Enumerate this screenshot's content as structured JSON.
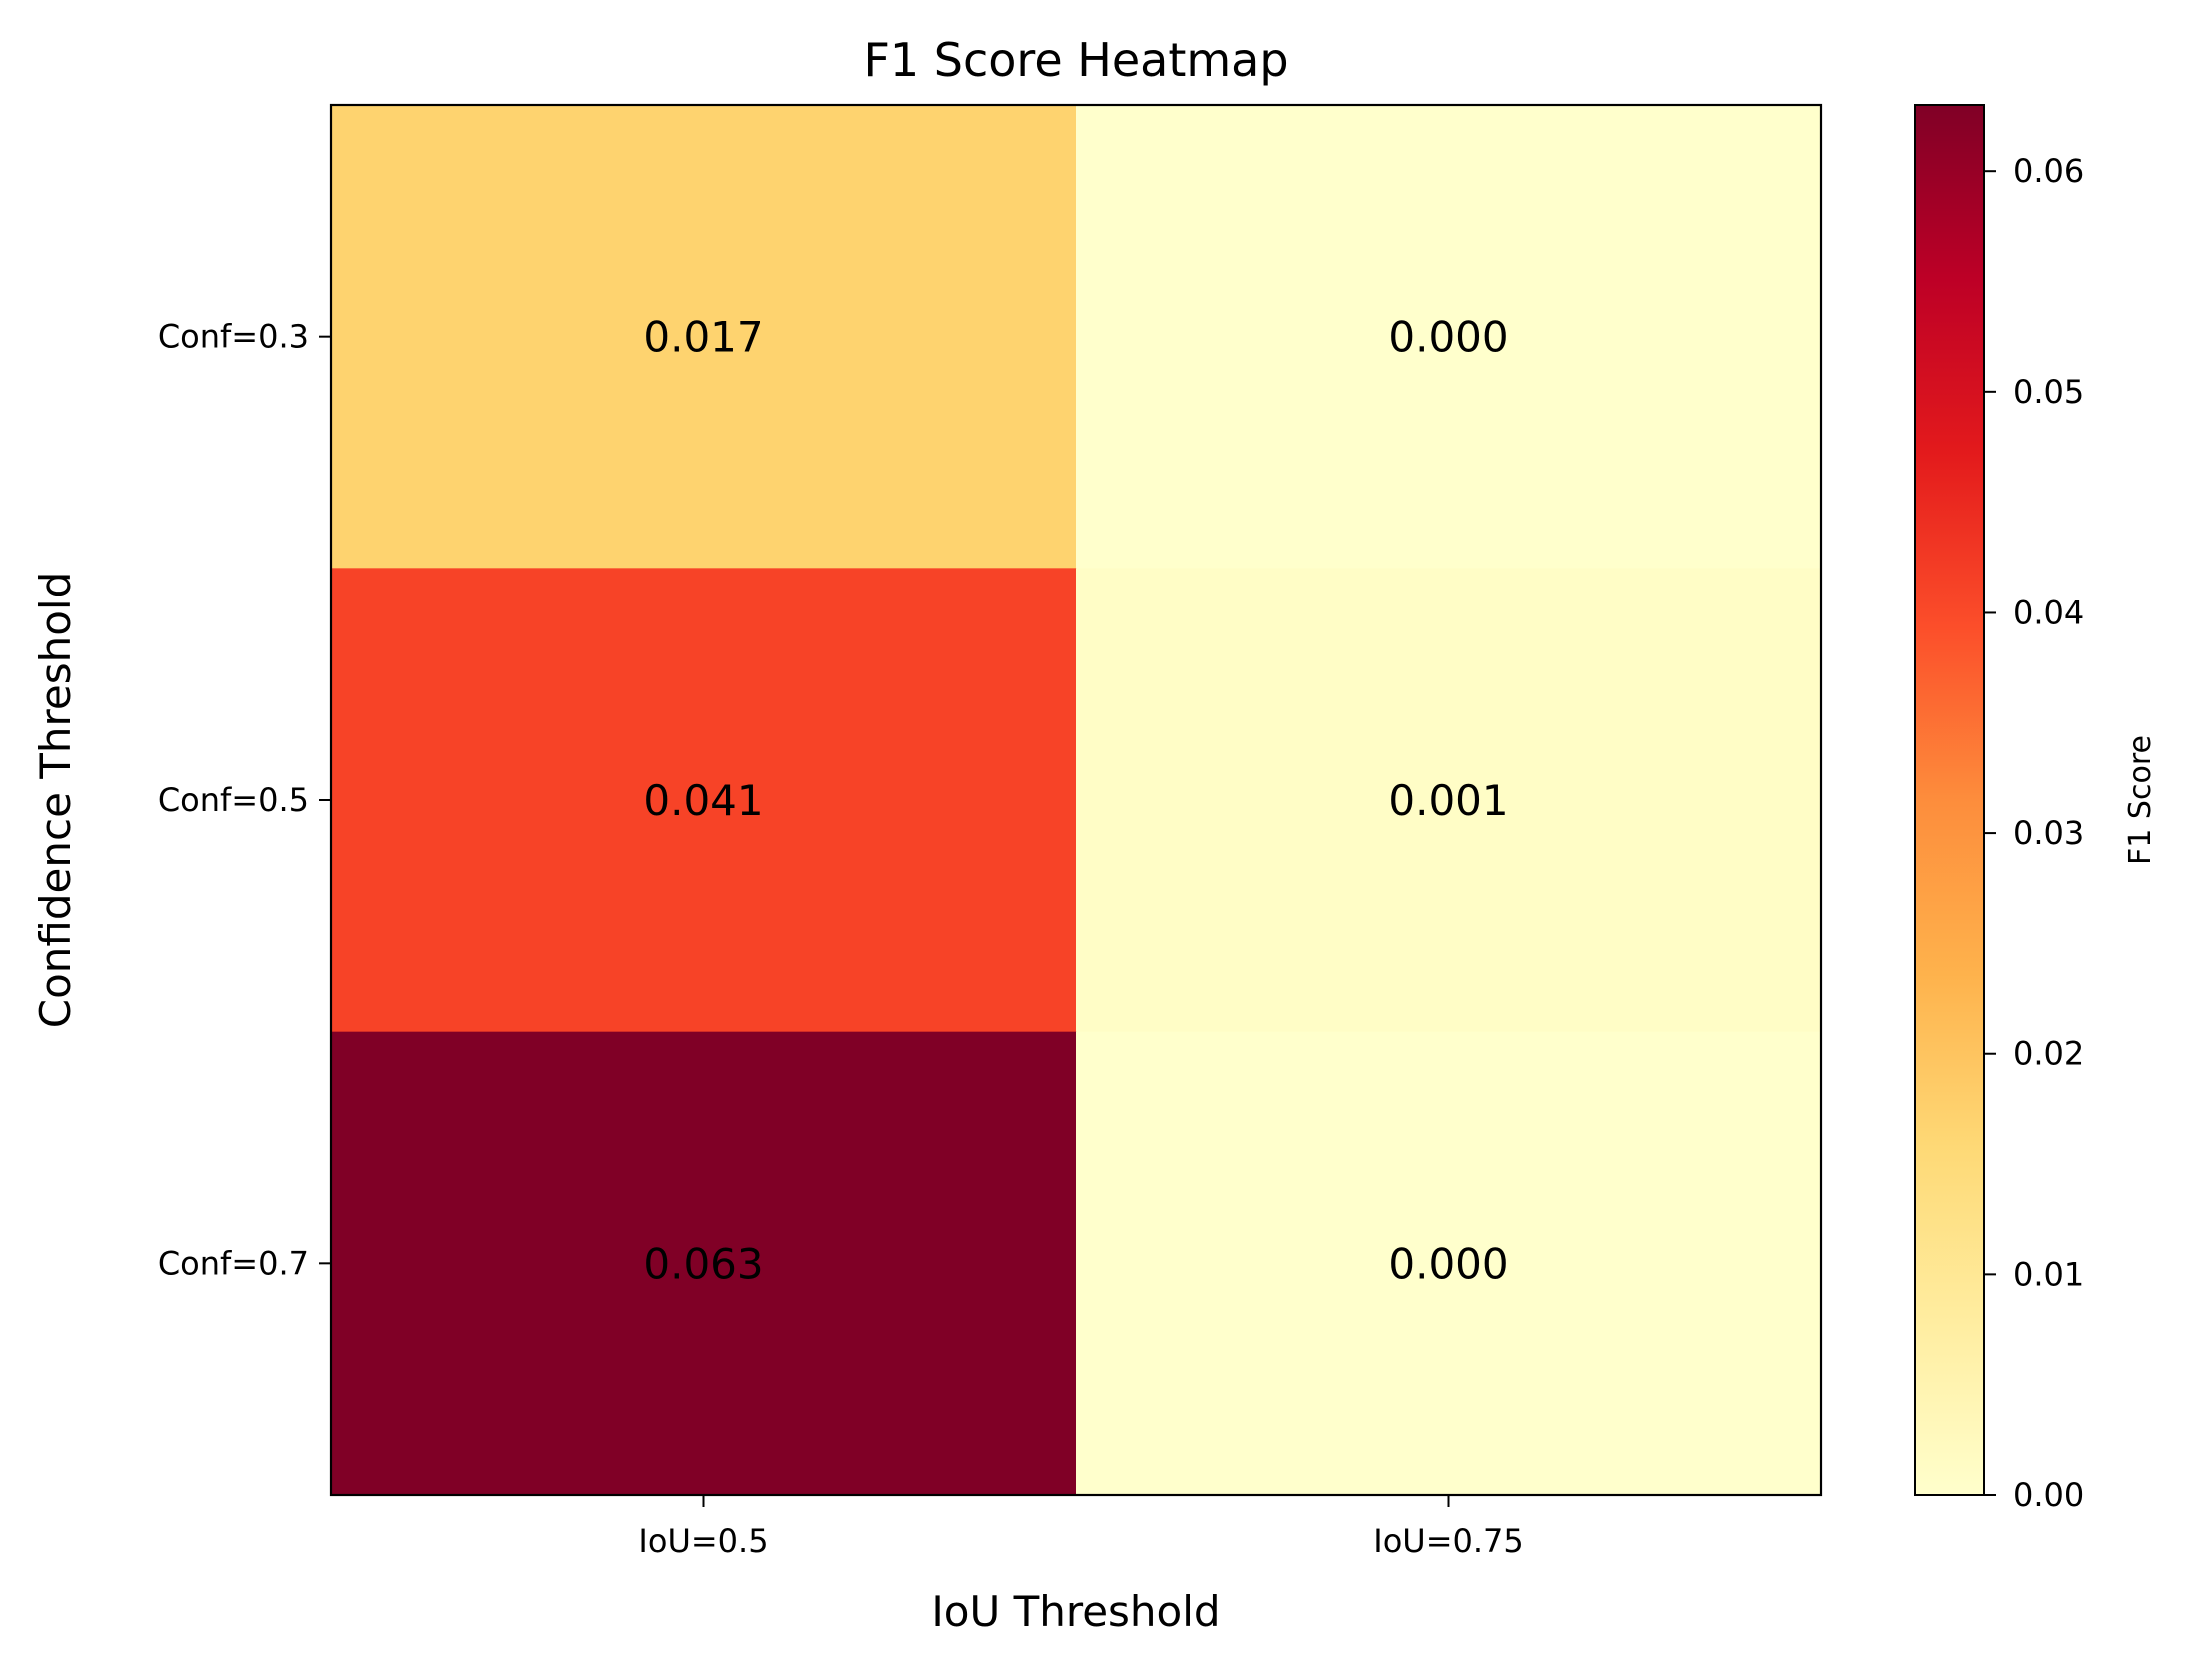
{
  "chart_data": {
    "type": "heatmap",
    "title": "F1 Score Heatmap",
    "xlabel": "IoU Threshold",
    "ylabel": "Confidence Threshold",
    "x_categories": [
      "IoU=0.5",
      "IoU=0.75"
    ],
    "y_categories": [
      "Conf=0.3",
      "Conf=0.5",
      "Conf=0.7"
    ],
    "values": [
      [
        0.017,
        0.0
      ],
      [
        0.041,
        0.001
      ],
      [
        0.063,
        0.0
      ]
    ],
    "cell_labels": [
      [
        "0.017",
        "0.000"
      ],
      [
        "0.041",
        "0.001"
      ],
      [
        "0.063",
        "0.000"
      ]
    ],
    "colorbar": {
      "label": "F1 Score",
      "vmin": 0.0,
      "vmax": 0.063,
      "ticks": [
        0.0,
        0.01,
        0.02,
        0.03,
        0.04,
        0.05,
        0.06
      ],
      "tick_labels": [
        "0.00",
        "0.01",
        "0.02",
        "0.03",
        "0.04",
        "0.05",
        "0.06"
      ],
      "colormap": "YlOrRd",
      "colormap_stops": [
        "#ffffcc",
        "#ffeda0",
        "#fed976",
        "#feb24c",
        "#fd8d3c",
        "#fc4e2a",
        "#e31a1c",
        "#bd0026",
        "#800026"
      ]
    },
    "grid": false
  }
}
